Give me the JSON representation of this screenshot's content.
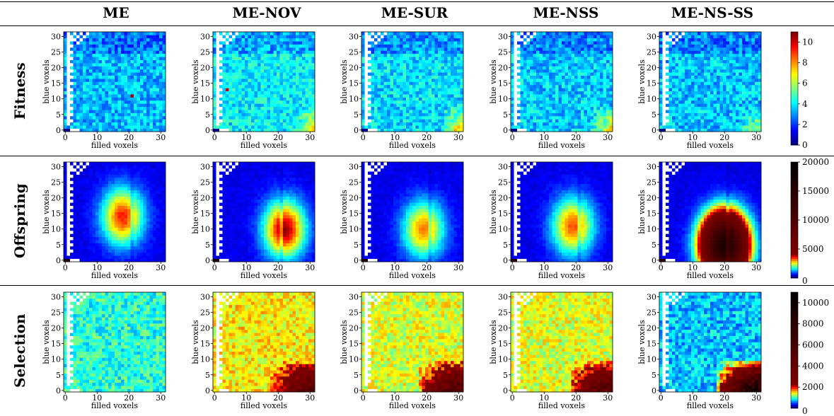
{
  "columns": [
    "ME",
    "ME-NOV",
    "ME-SUR",
    "ME-NSS",
    "ME-NS-SS"
  ],
  "rows": [
    "Fitness",
    "Offspring",
    "Selection"
  ],
  "chart_data": [
    {
      "type": "heatmap",
      "row": "Fitness",
      "xlabel": "filled voxels",
      "ylabel": "blue voxels",
      "x_ticks": [
        0,
        10,
        20,
        30
      ],
      "y_ticks": [
        0,
        5,
        10,
        15,
        20,
        25,
        30
      ],
      "grid_size": [
        32,
        32
      ],
      "colormap": "jet",
      "colorbar": {
        "range": [
          0,
          11
        ],
        "ticks": [
          0,
          2,
          4,
          6,
          8,
          10
        ]
      },
      "panels": [
        {
          "name": "ME",
          "mean_level": 3.4,
          "peak": [
            21,
            11
          ],
          "peak_value": 10.5
        },
        {
          "name": "ME-NOV",
          "mean_level": 4.0,
          "peak": [
            4,
            13
          ],
          "peak_value": 10.0,
          "hot_corner_value": 7.5
        },
        {
          "name": "ME-SUR",
          "mean_level": 3.8,
          "hot_corner_value": 8.5
        },
        {
          "name": "ME-NSS",
          "mean_level": 3.6,
          "hot_corner_value": 8.0
        },
        {
          "name": "ME-NS-SS",
          "mean_level": 3.5,
          "hot_corner_value": 6.5
        }
      ]
    },
    {
      "type": "heatmap",
      "row": "Offspring",
      "xlabel": "filled voxels",
      "ylabel": "blue voxels",
      "x_ticks": [
        0,
        10,
        20,
        30
      ],
      "y_ticks": [
        0,
        5,
        10,
        15,
        20,
        25,
        30
      ],
      "grid_size": [
        32,
        32
      ],
      "colormap": "jet-hot",
      "colorbar": {
        "range": [
          0,
          20000
        ],
        "ticks": [
          5000,
          10000,
          15000,
          20000
        ]
      },
      "panels": [
        {
          "name": "ME",
          "blob_center": [
            18,
            14
          ],
          "peak_value": 3000
        },
        {
          "name": "ME-NOV",
          "blob_center": [
            22,
            10
          ],
          "peak_value": 3500
        },
        {
          "name": "ME-SUR",
          "blob_center": [
            19,
            10
          ],
          "peak_value": 2600
        },
        {
          "name": "ME-NSS",
          "blob_center": [
            19,
            11
          ],
          "peak_value": 2800
        },
        {
          "name": "ME-NS-SS",
          "blob_center": [
            20,
            5
          ],
          "peak_value": 16000
        }
      ]
    },
    {
      "type": "heatmap",
      "row": "Selection",
      "xlabel": "filled voxels",
      "ylabel": "blue voxels",
      "x_ticks": [
        0,
        10,
        20,
        30
      ],
      "y_ticks": [
        0,
        5,
        10,
        15,
        20,
        25,
        30
      ],
      "grid_size": [
        32,
        32
      ],
      "colormap": "jet-hot",
      "colorbar": {
        "range": [
          0,
          11000
        ],
        "ticks": [
          2000,
          4000,
          6000,
          8000,
          10000
        ]
      },
      "panels": [
        {
          "name": "ME",
          "mean_level": 900
        },
        {
          "name": "ME-NOV",
          "mean_level": 1400,
          "hot_corner_value": 5000
        },
        {
          "name": "ME-SUR",
          "mean_level": 1300,
          "hot_corner_value": 6000
        },
        {
          "name": "ME-NSS",
          "mean_level": 1300,
          "hot_corner_value": 5500
        },
        {
          "name": "ME-NS-SS",
          "mean_level": 700,
          "hot_corner_value": 10500
        }
      ]
    }
  ]
}
